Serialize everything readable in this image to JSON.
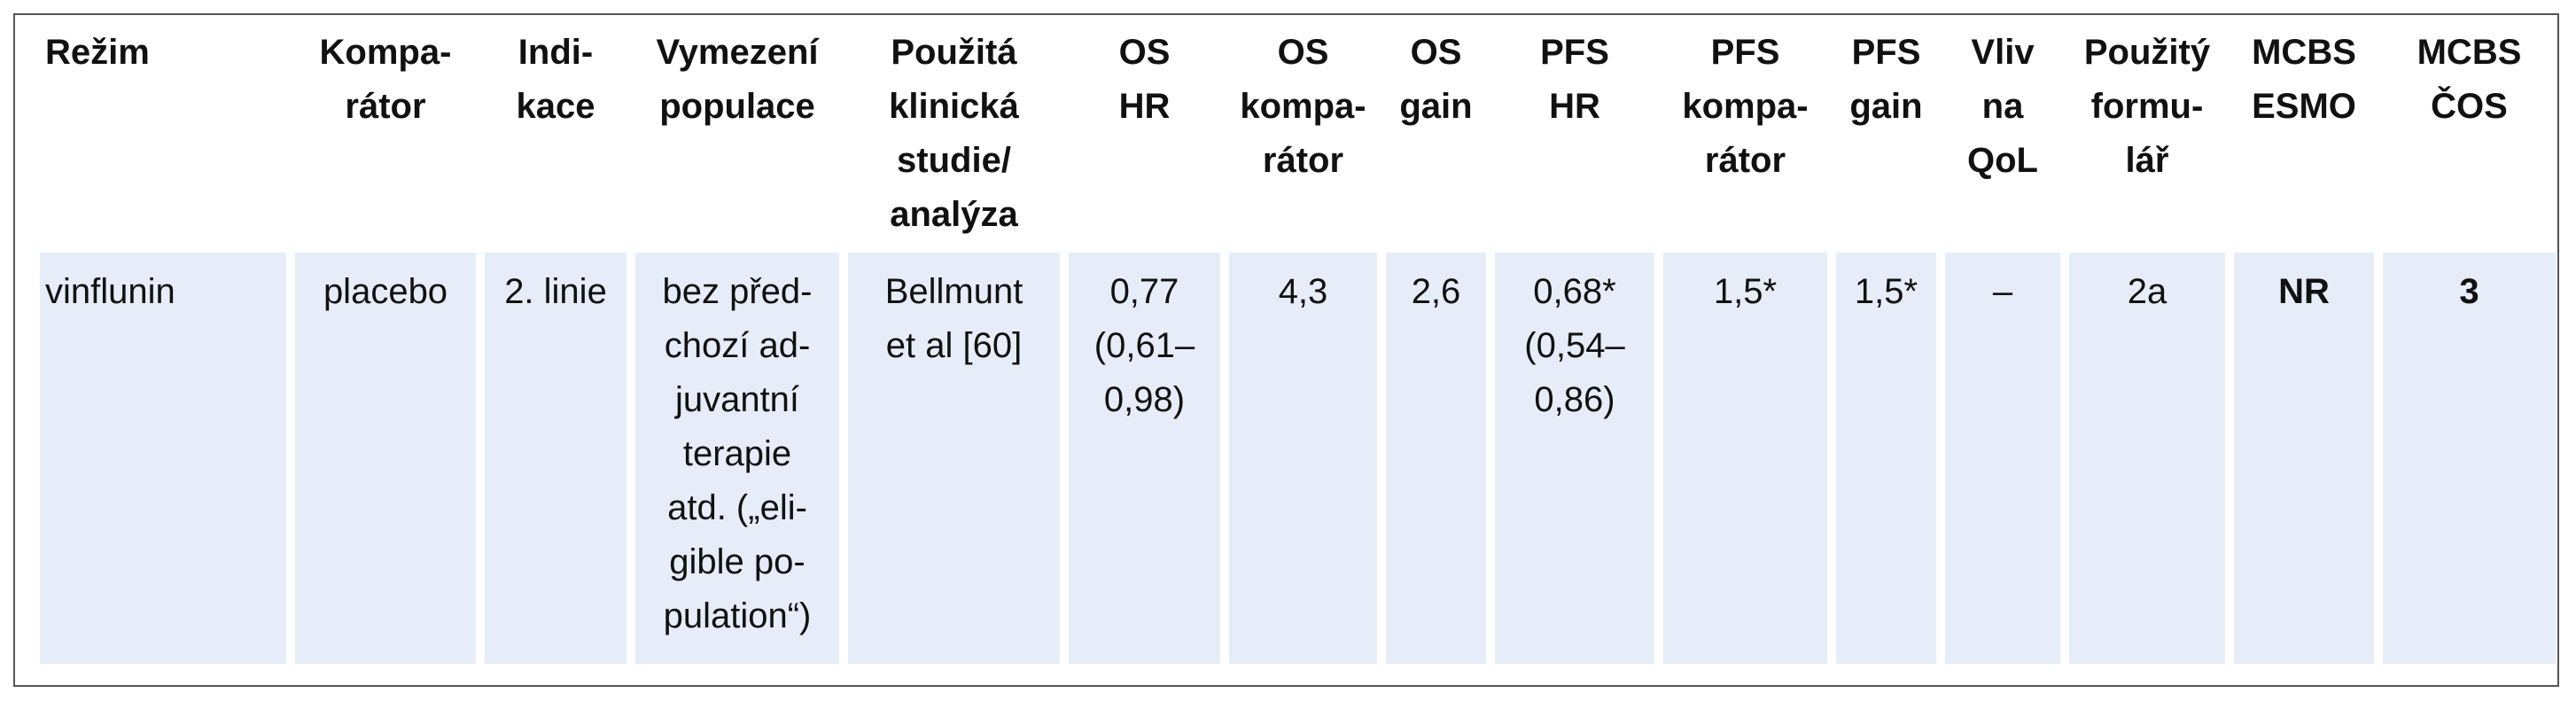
{
  "table": {
    "header": [
      "Režim",
      "Kompa-\nrátor",
      "Indi-\nkace",
      "Vymezení\npopulace",
      "Použitá\nklinická\nstudie/\nanalýza",
      "OS\nHR",
      "OS\nkompa-\nrátor",
      "OS\ngain",
      "PFS\nHR",
      "PFS\nkompa-\nrátor",
      "PFS\ngain",
      "Vliv\nna\nQoL",
      "Použitý\nformu-\nlář",
      "MCBS\nESMO",
      "MCBS\nČOS"
    ],
    "rows": [
      [
        "vinflunin",
        "placebo",
        "2. linie",
        "bez před-\nchozí ad-\njuvantní\nterapie\natd. („eli-\ngible po-\npulation“)",
        "Bellmunt\net al [60]",
        "0,77\n(0,61–\n0,98)",
        "4,3",
        "2,6",
        "0,68*\n(0,54–\n0,86)",
        "1,5*",
        "1,5*",
        "–",
        "2a",
        "NR",
        "3"
      ]
    ]
  }
}
